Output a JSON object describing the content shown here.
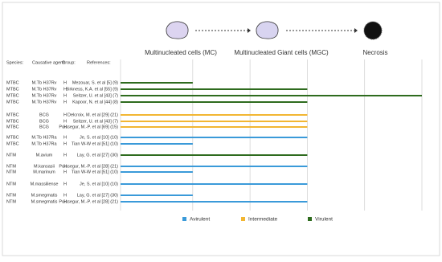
{
  "chart_data": {
    "type": "bar",
    "stages": [
      "Multinucleated cells (MC)",
      "Multinucleated Giant cells (MGC)",
      "Necrosis"
    ],
    "headers": [
      "Species:",
      "Causative agent:",
      "Group:",
      "References:"
    ],
    "species": [
      "MTBC",
      "MTBC",
      "MTBC",
      "MTBC",
      "MTBC",
      "MTBC",
      "MTBC",
      "MTBC",
      "MTBC",
      "NTM",
      "NTM",
      "NTM",
      "NTM",
      "NTM",
      "NTM"
    ],
    "agents": [
      "M.Tb H37Rv",
      "M.Tb H37Rv",
      "M.Tb H37Rv",
      "M.Tb H37Rv",
      "BCG",
      "BCG",
      "BCG",
      "M.Tb H37Ra",
      "M.Tb H37Ra",
      "M.avium",
      "M.kansasii",
      "M.marinum",
      "M.massiliense",
      "M.smegmatis",
      "M.smegmatis"
    ],
    "groups": [
      "H",
      "H",
      "H",
      "H",
      "H",
      "H",
      "H",
      "H",
      "H",
      "H",
      "H",
      "H",
      "H",
      "H",
      "H"
    ],
    "categories": [
      "Mezouar, S. et al [5] (9)",
      "Birkness, K.A. et al [55] (9)",
      "Seitzer, U. et al [43] (7)",
      "Kapoor, N. et al [44] (8)",
      "Delcroix, M. et al [29] (21)",
      "Seitzer, U. et al [43] (7)",
      "Puissegur, M.-P. et al [69] (15)",
      "Je, S. et al [10] (10)",
      "Tian W-W et al [51] (10)",
      "Lay, G. et al [27] (30)",
      "Puissegur, M.-P. et al [28] (21)",
      "Tian W-W et al [51] (10)",
      "Je, S. et al [10] (10)",
      "Lay, G. et al [27] (30)",
      "Puissegur, M.-P. et al [28] (21)"
    ],
    "series": [
      {
        "name": "Avirulent",
        "color": "#3a9ad9",
        "values": [
          null,
          null,
          null,
          null,
          null,
          null,
          null,
          2,
          1,
          null,
          2,
          1,
          2,
          1,
          2
        ]
      },
      {
        "name": "Intermediate",
        "color": "#f2b632",
        "values": [
          null,
          null,
          null,
          null,
          2,
          2,
          2,
          null,
          null,
          null,
          null,
          null,
          null,
          null,
          null
        ]
      },
      {
        "name": "Virulent",
        "color": "#2e6b1e",
        "values": [
          1,
          2,
          3,
          2,
          null,
          null,
          null,
          null,
          null,
          2,
          null,
          null,
          null,
          null,
          null
        ]
      }
    ],
    "xlim": [
      0.37,
      3
    ],
    "xticks": [
      1,
      1.5,
      2,
      2.5,
      3
    ],
    "grid": true
  }
}
